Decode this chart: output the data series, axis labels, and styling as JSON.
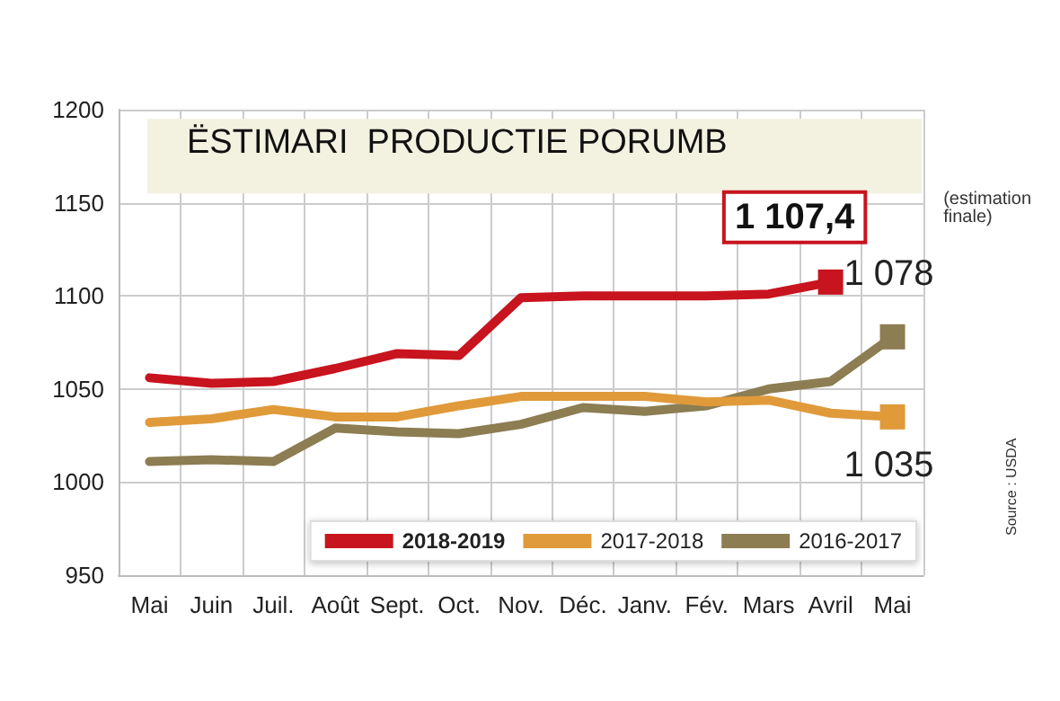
{
  "chart_data": {
    "type": "line",
    "title": "ËSTIMARI  PRODUCTIE PORUMB",
    "categories": [
      "Mai",
      "Juin",
      "Juil.",
      "Août",
      "Sept.",
      "Oct.",
      "Nov.",
      "Déc.",
      "Janv.",
      "Fév.",
      "Mars",
      "Avril",
      "Mai"
    ],
    "series": [
      {
        "name": "2018-2019",
        "color": "#c8141e",
        "values": [
          1056,
          1053,
          1054,
          1061,
          1069,
          1068,
          1099,
          1100,
          1100,
          1100,
          1101,
          1107.4,
          null
        ],
        "value_labels": [
          null,
          null,
          null,
          null,
          null,
          null,
          null,
          null,
          null,
          null,
          null,
          "1 107,4",
          null
        ]
      },
      {
        "name": "2017-2018",
        "color": "#e09a3a",
        "values": [
          1032,
          1034,
          1039,
          1035,
          1035,
          1041,
          1046,
          1046,
          1046,
          1043,
          1044,
          1037,
          1035
        ],
        "value_labels": [
          null,
          null,
          null,
          null,
          null,
          null,
          null,
          null,
          null,
          null,
          null,
          null,
          "1 035"
        ]
      },
      {
        "name": "2016-2017",
        "color": "#8c7d52",
        "values": [
          1011,
          1012,
          1011,
          1029,
          1027,
          1026,
          1031,
          1040,
          1038,
          1041,
          1050,
          1054,
          1078
        ],
        "value_labels": [
          null,
          null,
          null,
          null,
          null,
          null,
          null,
          null,
          null,
          null,
          null,
          null,
          "1 078"
        ]
      }
    ],
    "bands": [
      {
        "axis": "y",
        "from": 1155,
        "to": 1195,
        "color": "#f3f1e0"
      }
    ],
    "ylim": [
      950,
      1200
    ],
    "yticks": [
      950,
      1000,
      1050,
      1100,
      1150,
      1200
    ],
    "grid": true,
    "legend": "bottom right",
    "line_style": "solid",
    "annotations": [
      "(estimation finale)",
      "Source : USDA"
    ]
  }
}
